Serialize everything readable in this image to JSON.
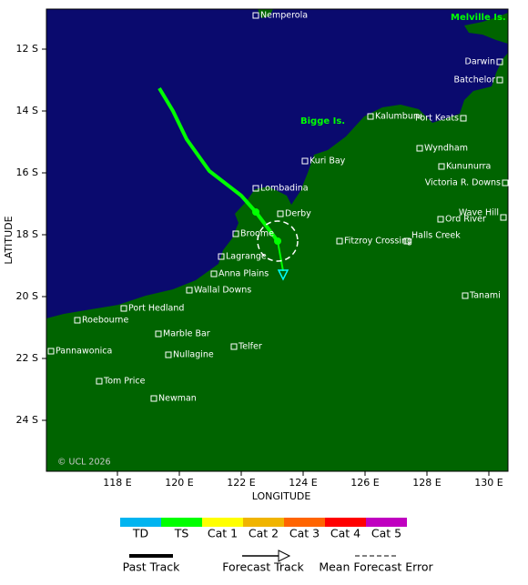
{
  "map": {
    "xticks": [
      "118 E",
      "120 E",
      "122 E",
      "124 E",
      "126 E",
      "128 E",
      "130 E"
    ],
    "yticks": [
      "12 S",
      "14 S",
      "16 S",
      "18 S",
      "20 S",
      "22 S",
      "24 S"
    ],
    "x_label": "LONGITUDE",
    "y_label": "LATITUDE",
    "regions": [
      "Melville Is.",
      "Bigge Is."
    ],
    "places": [
      "Nemperola",
      "Darwin",
      "Batchelor",
      "Kalumburu",
      "Port Keats",
      "Wyndham",
      "Kununurra",
      "Victoria R. Downs",
      "Kuri Bay",
      "Lombadina",
      "Derby",
      "Wave Hill",
      "Ord River",
      "Halls Creek",
      "Fitzroy Crossing",
      "Broome",
      "Lagrange",
      "Anna Plains",
      "Wallal Downs",
      "Tanami",
      "Port Hedland",
      "Roebourne",
      "Marble Bar",
      "Pannawonica",
      "Telfer",
      "Nullagine",
      "Tom Price",
      "Newman"
    ],
    "copyright": "© UCL 2026"
  },
  "legend": {
    "categories": [
      "TD",
      "TS",
      "Cat 1",
      "Cat 2",
      "Cat 3",
      "Cat 4",
      "Cat 5"
    ],
    "tracks": [
      "Past Track",
      "Forecast Track",
      "Mean Forecast Error"
    ]
  }
}
